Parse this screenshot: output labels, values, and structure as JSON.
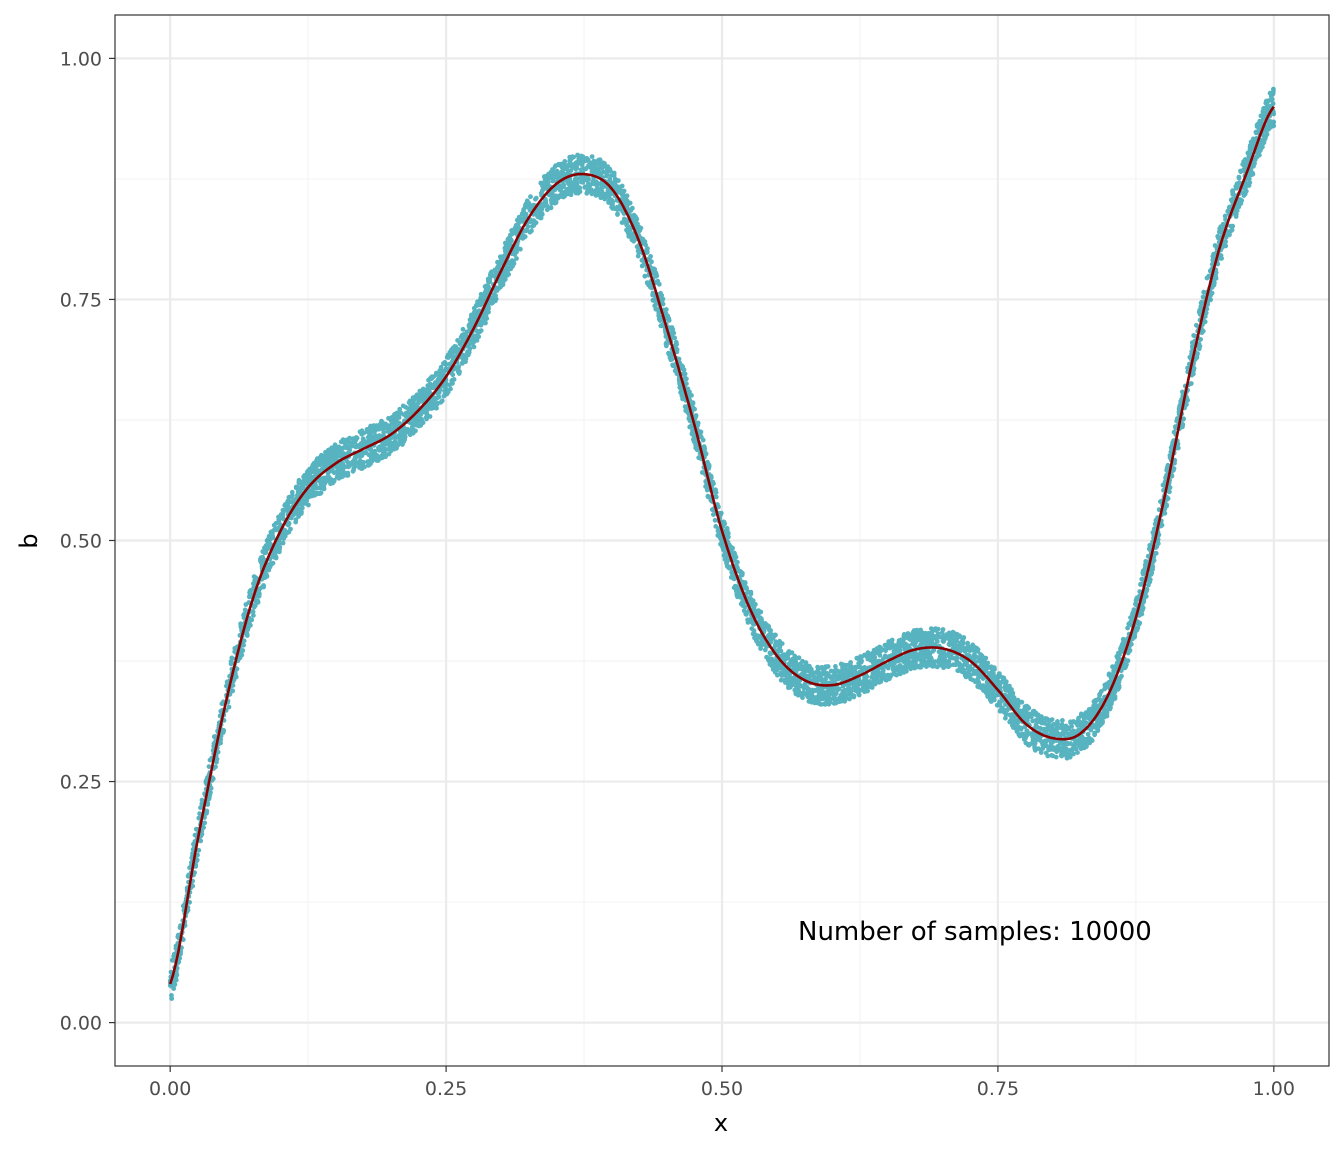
{
  "chart_data": {
    "type": "scatter",
    "title": "",
    "xlabel": "x",
    "ylabel": "b",
    "xlim": [
      -0.05,
      1.05
    ],
    "ylim": [
      -0.045,
      1.045
    ],
    "x_ticks": [
      0.0,
      0.25,
      0.5,
      0.75,
      1.0
    ],
    "x_tick_labels": [
      "0.00",
      "0.25",
      "0.50",
      "0.75",
      "1.00"
    ],
    "y_ticks": [
      0.0,
      0.25,
      0.5,
      0.75,
      1.0
    ],
    "y_tick_labels": [
      "0.00",
      "0.25",
      "0.50",
      "0.75",
      "1.00"
    ],
    "grid": true,
    "legend": "none",
    "annotation": "Number of samples: 10000",
    "colors": {
      "points": "#1f9aaa",
      "line": "#8b0000",
      "grid_major": "#ebebeb",
      "grid_minor": "#f4f4f4",
      "panel_border": "#333333"
    },
    "series": [
      {
        "type": "scatter",
        "n_samples": 10000,
        "noise_band": 0.02
      },
      {
        "type": "line",
        "x": [
          0.0,
          0.025,
          0.05,
          0.075,
          0.1,
          0.125,
          0.15,
          0.175,
          0.2,
          0.225,
          0.25,
          0.275,
          0.3,
          0.325,
          0.35,
          0.375,
          0.4,
          0.425,
          0.45,
          0.475,
          0.5,
          0.525,
          0.55,
          0.575,
          0.6,
          0.625,
          0.65,
          0.675,
          0.7,
          0.725,
          0.75,
          0.775,
          0.8,
          0.825,
          0.85,
          0.875,
          0.9,
          0.925,
          0.95,
          0.975,
          1.0
        ],
        "y": [
          0.04,
          0.19,
          0.33,
          0.44,
          0.51,
          0.555,
          0.58,
          0.595,
          0.61,
          0.635,
          0.67,
          0.72,
          0.78,
          0.835,
          0.87,
          0.88,
          0.865,
          0.81,
          0.72,
          0.62,
          0.51,
          0.43,
          0.38,
          0.355,
          0.35,
          0.36,
          0.375,
          0.387,
          0.388,
          0.375,
          0.345,
          0.31,
          0.295,
          0.3,
          0.34,
          0.42,
          0.54,
          0.68,
          0.8,
          0.88,
          0.95
        ]
      }
    ]
  }
}
